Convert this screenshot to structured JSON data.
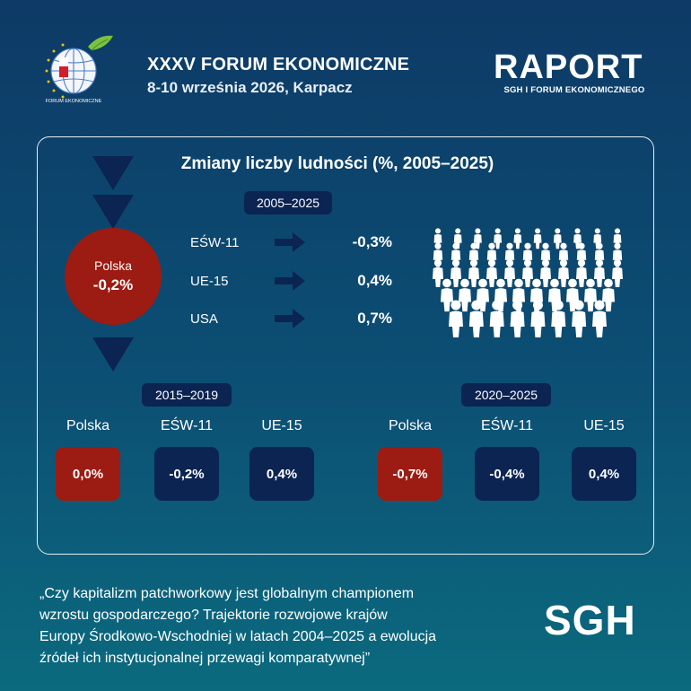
{
  "header": {
    "event_title": "XXXV FORUM EKONOMICZNE",
    "event_subtitle": "8-10 września 2026, Karpacz",
    "logo_caption": "FORUM EKONOMICZNE",
    "report_title": "RAPORT",
    "report_subtitle": "SGH I FORUM EKONOMICZNEGO"
  },
  "panel": {
    "title": "Zmiany liczby ludności (%, 2005–2025)",
    "main_period": "2005–2025",
    "polska": {
      "label": "Polska",
      "value": "-0,2%"
    },
    "comparison_rows": [
      {
        "label": "EŚW-11",
        "value": "-0,3%"
      },
      {
        "label": "UE-15",
        "value": "0,4%"
      },
      {
        "label": "USA",
        "value": "0,7%"
      }
    ],
    "periods": [
      {
        "label": "2015–2019",
        "items": [
          {
            "label": "Polska",
            "value": "0,0%",
            "color": "#9c1b12"
          },
          {
            "label": "EŚW-11",
            "value": "-0,2%",
            "color": "#0b2452"
          },
          {
            "label": "UE-15",
            "value": "0,4%",
            "color": "#0b2452"
          }
        ]
      },
      {
        "label": "2020–2025",
        "items": [
          {
            "label": "Polska",
            "value": "-0,7%",
            "color": "#9c1b12"
          },
          {
            "label": "EŚW-11",
            "value": "-0,4%",
            "color": "#0b2452"
          },
          {
            "label": "UE-15",
            "value": "0,4%",
            "color": "#0b2452"
          }
        ]
      }
    ]
  },
  "footer": {
    "quote_lines": [
      "„Czy kapitalizm patchworkowy jest globalnym championem",
      "wzrostu gospodarczego? Trajektorie rozwojowe krajów",
      "Europy Środkowo-Wschodniej w latach 2004–2025 a ewolucja",
      "źródeł ich instytucjonalnej przewagi komparatywnej”"
    ],
    "brand": "SGH"
  },
  "colors": {
    "accent_red": "#9c1b12",
    "navy": "#0b2452",
    "background_top": "#0d3a66",
    "background_bottom": "#0b6a7e"
  },
  "icons": [
    "globe-logo-icon",
    "leaf-icon",
    "arrow-right-icon",
    "crowd-icon",
    "triangle-down-icon"
  ]
}
